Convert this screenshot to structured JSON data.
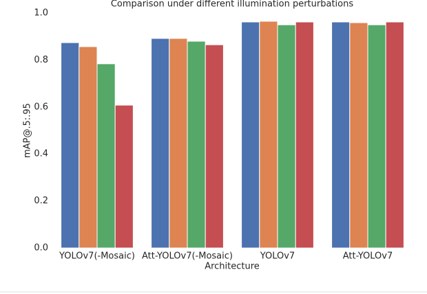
{
  "chart_data": {
    "type": "bar",
    "title": "Comparison under different illumination perturbations",
    "xlabel": "Architecture",
    "ylabel": "mAP@.5:.95",
    "categories": [
      "YOLOv7(-Mosaic)",
      "Att-YOLOv7(-Mosaic)",
      "YOLOv7",
      "Att-YOLOv7"
    ],
    "series": [
      {
        "color": "#4c72b0",
        "values": [
          0.874,
          0.892,
          0.962,
          0.962
        ]
      },
      {
        "color": "#dd8452",
        "values": [
          0.857,
          0.892,
          0.965,
          0.959
        ]
      },
      {
        "color": "#55a868",
        "values": [
          0.784,
          0.88,
          0.95,
          0.95
        ]
      },
      {
        "color": "#c44e52",
        "values": [
          0.608,
          0.865,
          0.962,
          0.962
        ]
      }
    ],
    "ylim": [
      0,
      1
    ],
    "yticks": [
      {
        "value": 0,
        "label": "0.0"
      },
      0.2,
      0.4,
      0.6,
      0.8,
      {
        "value": 1,
        "label": "1.0"
      }
    ],
    "grid": false
  }
}
